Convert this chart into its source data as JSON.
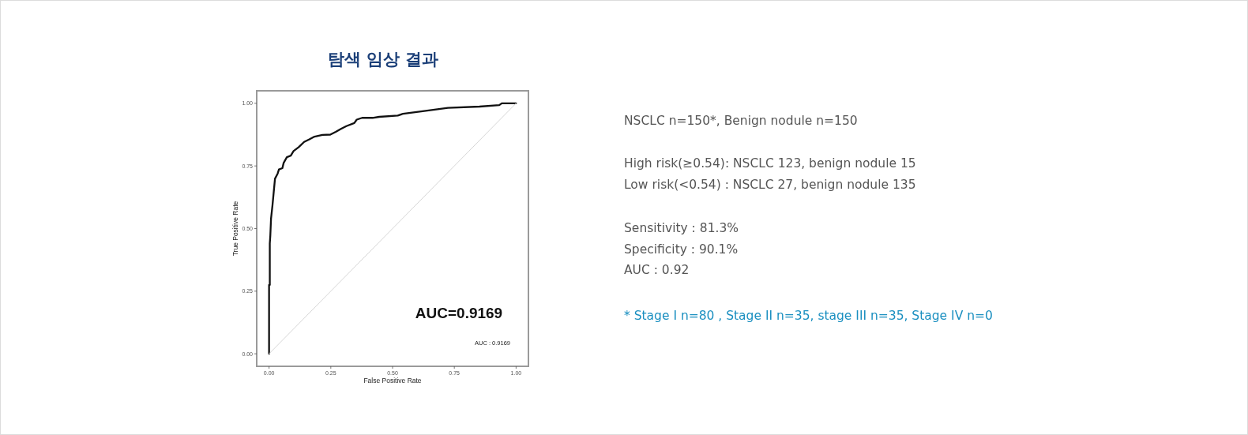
{
  "chart_data": [
    {
      "type": "line",
      "title": "탐색 임상 결과",
      "xlabel": "False Positive Rate",
      "ylabel": "True Positive Rate",
      "xlim": [
        -0.05,
        1.05
      ],
      "ylim": [
        -0.05,
        1.05
      ],
      "xticks": [
        {
          "value": 0,
          "label": "0.00"
        },
        {
          "value": 0.25,
          "label": "0.25"
        },
        {
          "value": 0.5,
          "label": "0.50"
        },
        {
          "value": 0.75,
          "label": "0.75"
        },
        {
          "value": 1,
          "label": "1.00"
        }
      ],
      "yticks": [
        {
          "value": 0,
          "label": "0.00"
        },
        {
          "value": 0.25,
          "label": "0.25"
        },
        {
          "value": 0.5,
          "label": "0.50"
        },
        {
          "value": 0.75,
          "label": "0.75"
        },
        {
          "value": 1,
          "label": "1.00"
        }
      ],
      "line_style": "solid",
      "series": [
        {
          "color": "#111111",
          "x": [
            0,
            0,
            0.003,
            0.003,
            0.005,
            0.008,
            0.014,
            0.019,
            0.024,
            0.035,
            0.04,
            0.054,
            0.059,
            0.072,
            0.088,
            0.099,
            0.12,
            0.142,
            0.163,
            0.184,
            0.216,
            0.248,
            0.27,
            0.291,
            0.313,
            0.345,
            0.355,
            0.377,
            0.419,
            0.446,
            0.521,
            0.542,
            0.628,
            0.724,
            0.852,
            0.932,
            0.942,
            1.0
          ],
          "values": [
            0,
            0.275,
            0.275,
            0.44,
            0.47,
            0.54,
            0.594,
            0.647,
            0.699,
            0.72,
            0.736,
            0.741,
            0.762,
            0.785,
            0.791,
            0.809,
            0.825,
            0.846,
            0.856,
            0.867,
            0.874,
            0.875,
            0.886,
            0.898,
            0.909,
            0.921,
            0.935,
            0.942,
            0.942,
            0.946,
            0.951,
            0.958,
            0.969,
            0.982,
            0.987,
            0.993,
            1.0,
            1.0
          ]
        },
        {
          "color": "#d6d6d6",
          "x": [
            0,
            1
          ],
          "values": [
            0,
            1
          ]
        }
      ],
      "annotations": [
        "AUC=0.9169",
        "AUC : 0.9169"
      ]
    },
    {
      "type": "other",
      "annotations": [
        "NSCLC n=150*, Benign nodule n=150",
        "High risk(≥0.54): NSCLC 123, benign nodule 15",
        "Low risk(<0.54) : NSCLC 27, benign nodule 135",
        "Sensitivity : 81.3%",
        "Specificity : 90.1%",
        "AUC : 0.92",
        "* Stage I n=80 , Stage II n=35, stage III n=35, Stage IV n=0"
      ]
    }
  ]
}
